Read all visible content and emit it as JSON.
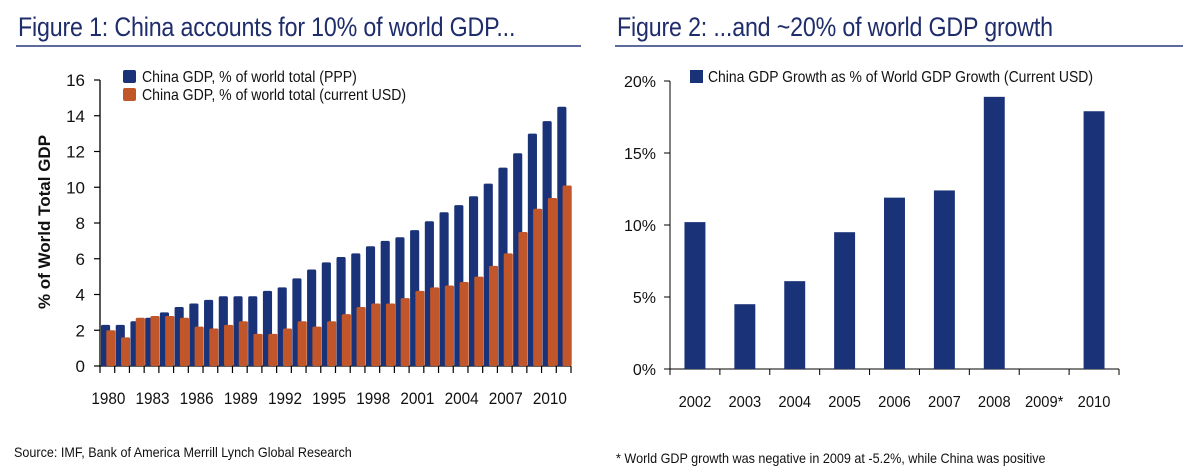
{
  "colors": {
    "ppp": "#1a3278",
    "usd": "#c0562a",
    "growth": "#1a3278",
    "title": "#1f2d6b"
  },
  "fig1": {
    "title": "Figure 1: China accounts for 10% of world GDP...",
    "source": "Source: IMF, Bank of America Merrill Lynch Global Research"
  },
  "fig2": {
    "title": "Figure 2: ...and ~20% of world GDP growth",
    "footnote": "* World GDP growth was negative in 2009 at -5.2%, while China was positive"
  },
  "chart_data": [
    {
      "type": "bar",
      "title": "Figure 1: China accounts for 10% of world GDP...",
      "xlabel": "",
      "ylabel": "% of World Total GDP",
      "ylim": [
        0,
        16
      ],
      "yticks": [
        "0",
        "2",
        "4",
        "6",
        "8",
        "10",
        "12",
        "14",
        "16"
      ],
      "categories": [
        "1980",
        "1981",
        "1982",
        "1983",
        "1984",
        "1985",
        "1986",
        "1987",
        "1988",
        "1989",
        "1990",
        "1991",
        "1992",
        "1993",
        "1994",
        "1995",
        "1996",
        "1997",
        "1998",
        "1999",
        "2000",
        "2001",
        "2002",
        "2003",
        "2004",
        "2005",
        "2006",
        "2007",
        "2008",
        "2009",
        "2010",
        "2011"
      ],
      "xtick_labels": [
        "1980",
        "1983",
        "1986",
        "1989",
        "1992",
        "1995",
        "1998",
        "2001",
        "2004",
        "2007",
        "2010"
      ],
      "legend_position": "top-left",
      "series": [
        {
          "name": "China GDP, % of world total (PPP)",
          "values": [
            2.3,
            2.3,
            2.5,
            2.7,
            3.0,
            3.3,
            3.5,
            3.7,
            3.9,
            3.9,
            3.9,
            4.2,
            4.4,
            4.9,
            5.4,
            5.8,
            6.1,
            6.3,
            6.7,
            7.0,
            7.2,
            7.6,
            8.1,
            8.6,
            9.0,
            9.5,
            10.2,
            11.1,
            11.9,
            13.0,
            13.7,
            14.5
          ]
        },
        {
          "name": "China GDP, % of world total (current USD)",
          "values": [
            2.0,
            1.6,
            2.7,
            2.8,
            2.8,
            2.7,
            2.2,
            2.1,
            2.3,
            2.5,
            1.8,
            1.8,
            2.1,
            2.5,
            2.2,
            2.5,
            2.9,
            3.3,
            3.5,
            3.5,
            3.8,
            4.2,
            4.4,
            4.5,
            4.7,
            5.0,
            5.6,
            6.3,
            7.5,
            8.8,
            9.4,
            10.1
          ]
        }
      ]
    },
    {
      "type": "bar",
      "title": "Figure 2: ...and ~20% of world GDP growth",
      "xlabel": "",
      "ylabel": "",
      "ylim": [
        0,
        20
      ],
      "yticks": [
        "0%",
        "5%",
        "10%",
        "15%",
        "20%"
      ],
      "categories": [
        "2002",
        "2003",
        "2004",
        "2005",
        "2006",
        "2007",
        "2008",
        "2009*",
        "2010"
      ],
      "legend_position": "top",
      "series": [
        {
          "name": "China GDP Growth as % of World GDP Growth (Current USD)",
          "values": [
            10.2,
            4.5,
            6.1,
            9.5,
            11.9,
            12.4,
            18.9,
            null,
            17.9
          ]
        }
      ]
    }
  ]
}
